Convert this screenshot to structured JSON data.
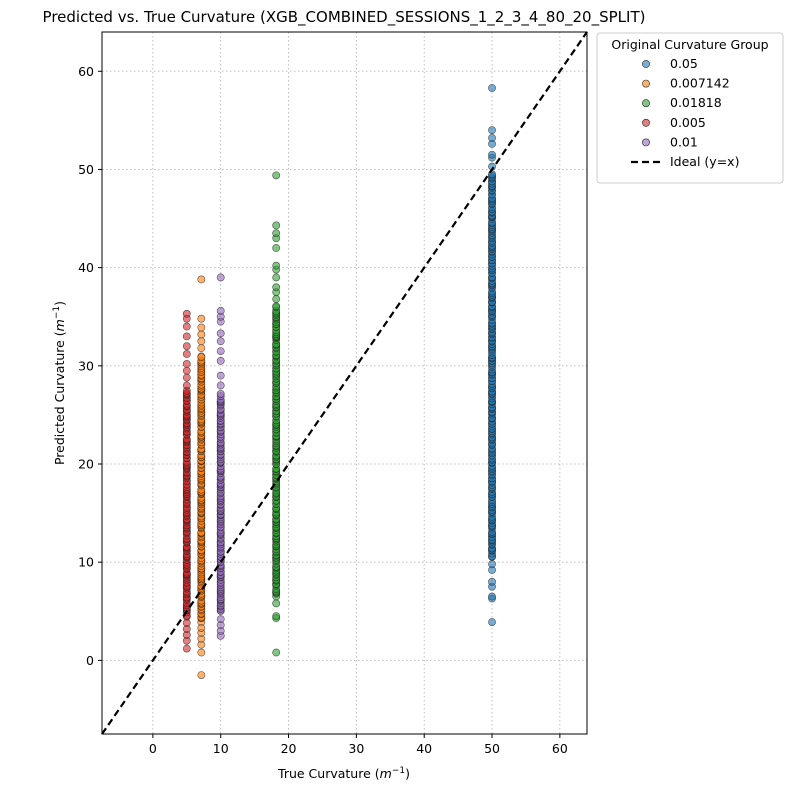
{
  "chart_data": {
    "type": "scatter",
    "title": "Predicted vs. True Curvature (XGB_COMBINED_SESSIONS_1_2_3_4_80_20_SPLIT)",
    "xlabel_main": "True Curvature (",
    "xlabel_unit": "m",
    "xlabel_exp": "−1",
    "xlabel_close": ")",
    "ylabel_main": "Predicted Curvature (",
    "ylabel_unit": "m",
    "ylabel_exp": "−1",
    "ylabel_close": ")",
    "xlim": [
      -7.5,
      64
    ],
    "ylim": [
      -7.5,
      64
    ],
    "xticks": [
      0,
      10,
      20,
      30,
      40,
      50,
      60
    ],
    "yticks": [
      0,
      10,
      20,
      30,
      40,
      50,
      60
    ],
    "grid": true,
    "legend_title": "Original Curvature Group",
    "legend_position": "outside-top-right",
    "series": [
      {
        "name": "0.05",
        "x": 50,
        "color": "#1f77b4",
        "ymin": 3.9,
        "ymax": 58.3,
        "dense_range": [
          10.5,
          49.5
        ],
        "outliers": [
          3.9,
          6.3,
          6.5,
          7.5,
          8.0,
          9.2,
          9.8,
          50.3,
          51.2,
          51.5,
          52.6,
          53.2,
          54.0,
          58.3
        ]
      },
      {
        "name": "0.007142",
        "x": 7.142,
        "color": "#ff7f0e",
        "ymin": -1.5,
        "ymax": 38.8,
        "dense_range": [
          4.0,
          31.0
        ],
        "outliers": [
          -1.5,
          0.8,
          1.6,
          2.2,
          2.8,
          3.3,
          31.8,
          32.5,
          33.2,
          33.9,
          34.8,
          38.8
        ]
      },
      {
        "name": "0.01818",
        "x": 18.18,
        "color": "#2ca02c",
        "ymin": 0.8,
        "ymax": 49.4,
        "dense_range": [
          6.5,
          36.0
        ],
        "outliers": [
          0.8,
          4.3,
          4.5,
          5.8,
          36.8,
          37.5,
          38.0,
          39.0,
          39.8,
          40.2,
          42.0,
          43.0,
          43.5,
          44.3,
          49.4
        ]
      },
      {
        "name": "0.005",
        "x": 5,
        "color": "#d62728",
        "ymin": 1.2,
        "ymax": 35.3,
        "dense_range": [
          4.5,
          27.5
        ],
        "outliers": [
          1.2,
          2.0,
          2.6,
          3.2,
          3.8,
          28.0,
          28.8,
          29.5,
          30.2,
          31.2,
          32.0,
          33.0,
          34.0,
          34.8,
          35.3
        ]
      },
      {
        "name": "0.01",
        "x": 10,
        "color": "#9467bd",
        "ymin": 2.5,
        "ymax": 39.0,
        "dense_range": [
          5.0,
          27.0
        ],
        "outliers": [
          2.5,
          3.0,
          3.6,
          4.2,
          28.0,
          29.0,
          30.5,
          31.5,
          32.5,
          33.3,
          34.5,
          35.0,
          35.6,
          39.0
        ]
      }
    ],
    "reference_line": {
      "name": "Ideal (y=x)",
      "style": "dashed",
      "color": "#000000"
    }
  }
}
